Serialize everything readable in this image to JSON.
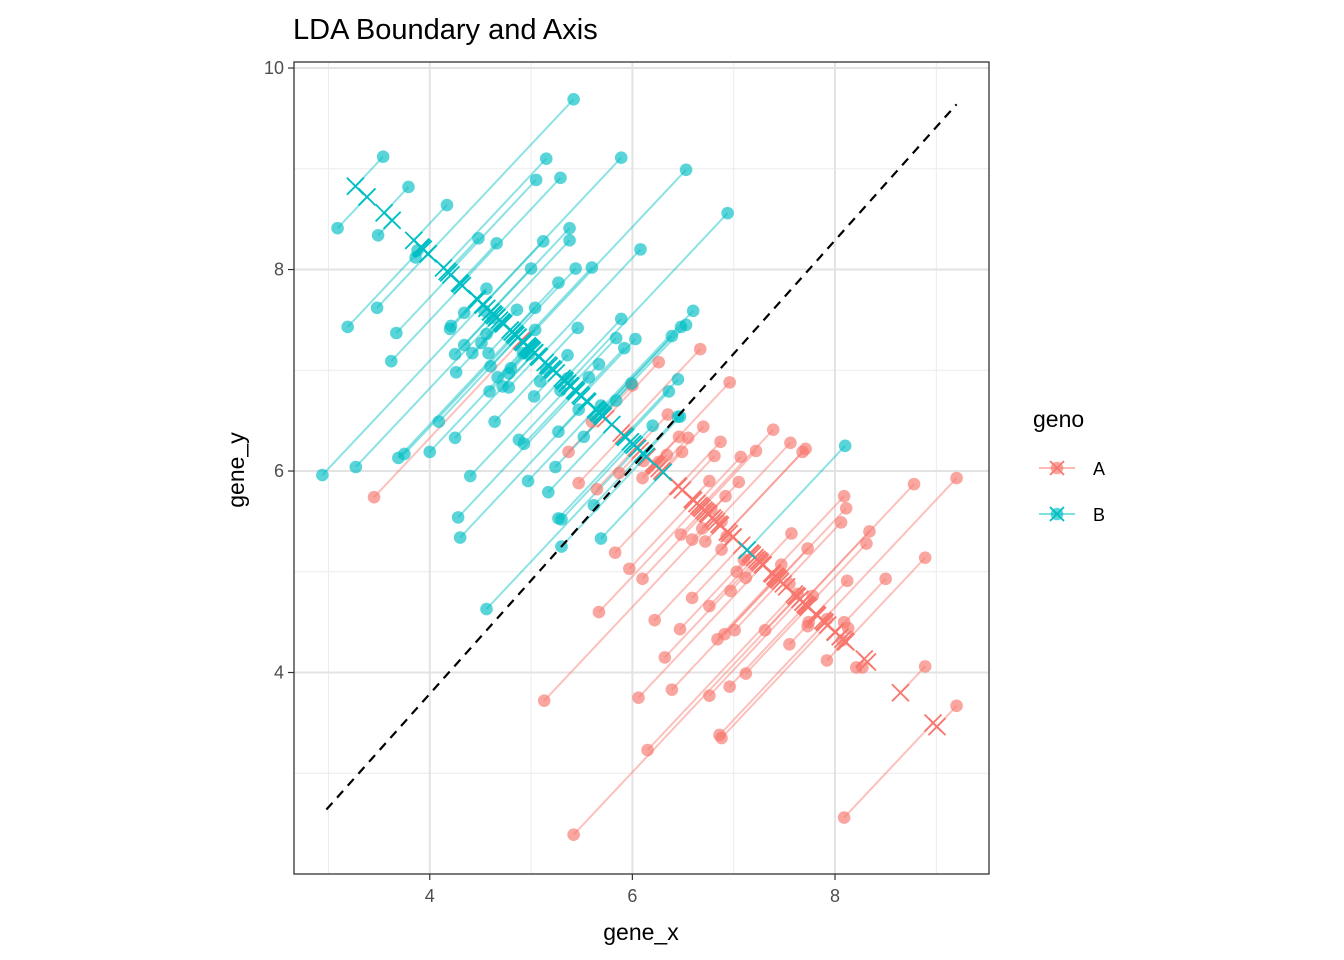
{
  "chart_data": {
    "type": "scatter",
    "title": "LDA Boundary and Axis",
    "xlabel": "gene_x",
    "ylabel": "gene_y",
    "xlim": [
      2.66,
      9.52
    ],
    "ylim": [
      2.0,
      10.06
    ],
    "x_ticks": [
      4,
      6,
      8
    ],
    "y_ticks": [
      4,
      6,
      8,
      10
    ],
    "grid": true,
    "legend": {
      "title": "geno",
      "position": "right",
      "entries": [
        "A",
        "B"
      ]
    },
    "colors": {
      "A": "#F8766D",
      "B": "#00BFC4"
    },
    "boundary": {
      "style": "dashed",
      "from": [
        2.98,
        2.64
      ],
      "to": [
        9.2,
        9.64
      ]
    },
    "projection_axis": {
      "intercept": 11.88,
      "slope": -0.9346
    },
    "series": [
      {
        "name": "A",
        "points": [
          [
            5.13,
            3.72
          ],
          [
            5.42,
            2.39
          ],
          [
            6.15,
            3.23
          ],
          [
            6.06,
            3.75
          ],
          [
            6.39,
            3.83
          ],
          [
            6.76,
            3.77
          ],
          [
            6.86,
            3.38
          ],
          [
            6.88,
            3.35
          ],
          [
            6.96,
            3.86
          ],
          [
            7.12,
            3.99
          ],
          [
            8.09,
            2.56
          ],
          [
            8.89,
            4.06
          ],
          [
            9.2,
            3.67
          ],
          [
            7.31,
            4.42
          ],
          [
            7.55,
            4.28
          ],
          [
            7.73,
            4.46
          ],
          [
            7.92,
            4.12
          ],
          [
            8.07,
            4.32
          ],
          [
            8.13,
            4.44
          ],
          [
            8.21,
            4.05
          ],
          [
            8.27,
            4.05
          ],
          [
            6.22,
            4.52
          ],
          [
            6.47,
            4.43
          ],
          [
            6.84,
            4.33
          ],
          [
            6.91,
            4.38
          ],
          [
            7.01,
            4.42
          ],
          [
            5.67,
            4.6
          ],
          [
            5.97,
            5.03
          ],
          [
            6.1,
            4.93
          ],
          [
            5.83,
            5.19
          ],
          [
            6.32,
            4.15
          ],
          [
            6.59,
            4.74
          ],
          [
            6.76,
            4.66
          ],
          [
            6.97,
            4.81
          ],
          [
            7.03,
            5.0
          ],
          [
            7.12,
            4.94
          ],
          [
            7.41,
            4.96
          ],
          [
            7.55,
            4.88
          ],
          [
            7.63,
            4.78
          ],
          [
            7.78,
            4.76
          ],
          [
            7.92,
            4.53
          ],
          [
            7.74,
            4.5
          ],
          [
            8.09,
            4.5
          ],
          [
            8.12,
            4.91
          ],
          [
            8.31,
            5.28
          ],
          [
            8.34,
            5.4
          ],
          [
            8.5,
            4.93
          ],
          [
            8.89,
            5.14
          ],
          [
            8.78,
            5.87
          ],
          [
            9.2,
            5.93
          ],
          [
            8.09,
            5.75
          ],
          [
            8.11,
            5.63
          ],
          [
            8.06,
            5.49
          ],
          [
            7.73,
            5.23
          ],
          [
            7.57,
            5.38
          ],
          [
            7.47,
            5.07
          ],
          [
            7.28,
            5.14
          ],
          [
            7.1,
            5.12
          ],
          [
            6.88,
            5.22
          ],
          [
            6.93,
            5.35
          ],
          [
            6.59,
            5.32
          ],
          [
            6.72,
            5.3
          ],
          [
            6.48,
            5.37
          ],
          [
            6.69,
            5.43
          ],
          [
            6.78,
            5.62
          ],
          [
            6.88,
            5.5
          ],
          [
            6.92,
            5.75
          ],
          [
            6.76,
            5.9
          ],
          [
            7.05,
            5.89
          ],
          [
            5.47,
            5.88
          ],
          [
            5.65,
            5.82
          ],
          [
            5.87,
            5.98
          ],
          [
            6.1,
            5.93
          ],
          [
            6.11,
            6.1
          ],
          [
            6.34,
            6.16
          ],
          [
            6.26,
            6.09
          ],
          [
            6.49,
            6.19
          ],
          [
            6.81,
            6.15
          ],
          [
            7.07,
            6.14
          ],
          [
            7.22,
            6.2
          ],
          [
            7.39,
            6.41
          ],
          [
            7.56,
            6.28
          ],
          [
            7.68,
            6.19
          ],
          [
            7.71,
            6.22
          ],
          [
            6.87,
            6.29
          ],
          [
            6.55,
            6.33
          ],
          [
            6.46,
            6.34
          ],
          [
            6.7,
            6.44
          ],
          [
            5.37,
            6.19
          ],
          [
            3.45,
            5.74
          ],
          [
            6.96,
            6.88
          ],
          [
            6.35,
            6.56
          ],
          [
            6.0,
            6.85
          ],
          [
            6.26,
            7.08
          ],
          [
            6.67,
            7.21
          ],
          [
            5.6,
            6.49
          ]
        ]
      },
      {
        "name": "B",
        "points": [
          [
            2.94,
            5.96
          ],
          [
            3.27,
            6.04
          ],
          [
            3.69,
            6.13
          ],
          [
            3.75,
            6.17
          ],
          [
            4.0,
            6.19
          ],
          [
            4.09,
            6.49
          ],
          [
            4.25,
            6.33
          ],
          [
            4.28,
            5.54
          ],
          [
            4.3,
            5.34
          ],
          [
            4.4,
            5.95
          ],
          [
            4.56,
            4.63
          ],
          [
            4.64,
            6.49
          ],
          [
            4.88,
            6.31
          ],
          [
            4.93,
            6.27
          ],
          [
            4.97,
            5.9
          ],
          [
            5.17,
            5.79
          ],
          [
            5.24,
            6.04
          ],
          [
            5.27,
            5.53
          ],
          [
            5.3,
            5.52
          ],
          [
            5.3,
            5.25
          ],
          [
            5.52,
            6.34
          ],
          [
            5.62,
            5.66
          ],
          [
            5.69,
            5.33
          ],
          [
            5.27,
            6.39
          ],
          [
            5.47,
            6.61
          ],
          [
            5.69,
            6.65
          ],
          [
            5.84,
            6.7
          ],
          [
            5.99,
            6.87
          ],
          [
            6.2,
            6.45
          ],
          [
            6.36,
            6.79
          ],
          [
            6.47,
            6.54
          ],
          [
            6.45,
            6.91
          ],
          [
            6.45,
            6.54
          ],
          [
            8.1,
            6.25
          ],
          [
            5.03,
            6.74
          ],
          [
            5.09,
            6.89
          ],
          [
            5.15,
            7.01
          ],
          [
            5.29,
            6.8
          ],
          [
            5.36,
            6.92
          ],
          [
            5.36,
            7.15
          ],
          [
            5.57,
            6.93
          ],
          [
            5.67,
            7.06
          ],
          [
            5.84,
            7.32
          ],
          [
            5.92,
            7.22
          ],
          [
            6.03,
            7.31
          ],
          [
            6.39,
            7.34
          ],
          [
            6.48,
            7.43
          ],
          [
            6.53,
            7.45
          ],
          [
            6.6,
            7.59
          ],
          [
            5.89,
            7.51
          ],
          [
            5.46,
            7.42
          ],
          [
            5.04,
            7.4
          ],
          [
            4.98,
            7.16
          ],
          [
            4.92,
            7.17
          ],
          [
            4.8,
            7.02
          ],
          [
            4.78,
            6.97
          ],
          [
            4.78,
            6.83
          ],
          [
            4.72,
            6.84
          ],
          [
            4.67,
            6.93
          ],
          [
            4.6,
            7.04
          ],
          [
            4.59,
            6.79
          ],
          [
            4.58,
            7.17
          ],
          [
            4.56,
            7.36
          ],
          [
            4.51,
            7.27
          ],
          [
            4.42,
            7.17
          ],
          [
            4.34,
            7.25
          ],
          [
            4.26,
            6.98
          ],
          [
            4.25,
            7.16
          ],
          [
            4.2,
            7.41
          ],
          [
            4.21,
            7.44
          ],
          [
            4.34,
            7.57
          ],
          [
            4.54,
            7.59
          ],
          [
            4.62,
            7.52
          ],
          [
            4.86,
            7.6
          ],
          [
            5.04,
            7.62
          ],
          [
            4.56,
            7.81
          ],
          [
            3.67,
            7.37
          ],
          [
            3.62,
            7.09
          ],
          [
            3.19,
            7.43
          ],
          [
            3.48,
            7.62
          ],
          [
            3.09,
            8.41
          ],
          [
            3.49,
            8.34
          ],
          [
            3.79,
            8.82
          ],
          [
            3.54,
            9.12
          ],
          [
            3.86,
            8.12
          ],
          [
            3.88,
            8.19
          ],
          [
            4.17,
            8.64
          ],
          [
            4.48,
            8.31
          ],
          [
            4.66,
            8.26
          ],
          [
            5.12,
            8.28
          ],
          [
            5.38,
            8.29
          ],
          [
            5.38,
            8.41
          ],
          [
            5.27,
            7.87
          ],
          [
            5.0,
            8.01
          ],
          [
            5.44,
            8.01
          ],
          [
            5.6,
            8.02
          ],
          [
            5.05,
            8.89
          ],
          [
            5.29,
            8.91
          ],
          [
            5.15,
            9.1
          ],
          [
            5.42,
            9.69
          ],
          [
            5.89,
            9.11
          ],
          [
            6.08,
            8.2
          ],
          [
            6.53,
            8.99
          ],
          [
            6.94,
            8.56
          ]
        ]
      }
    ]
  }
}
